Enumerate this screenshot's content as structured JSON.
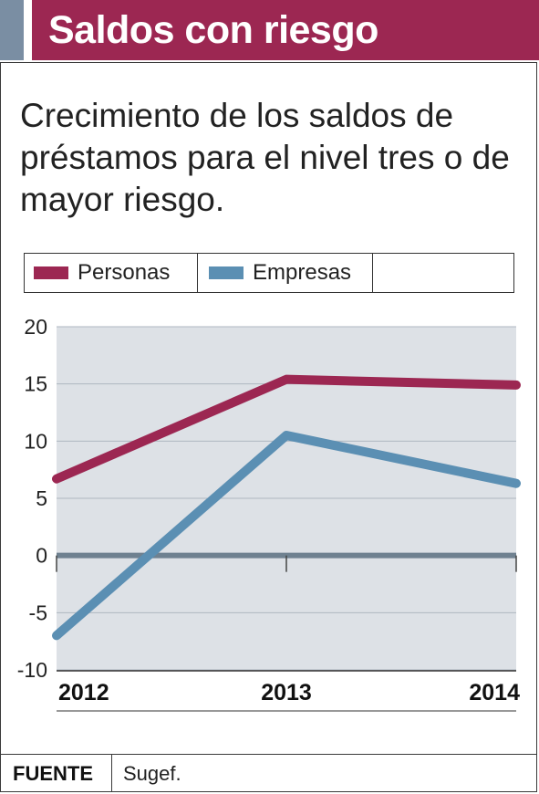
{
  "header": {
    "title": "Saldos con riesgo"
  },
  "subtitle": "Crecimiento de los saldos de préstamos para el nivel tres o de mayor riesgo.",
  "colors": {
    "accent": "#9c2752",
    "header_accent": "#7a8ea3",
    "plot_bg": "#dde1e6",
    "zero_line": "#6f8190"
  },
  "footer": {
    "label": "FUENTE",
    "source": "Sugef."
  },
  "chart_data": {
    "type": "line",
    "title": "",
    "xlabel": "",
    "ylabel": "",
    "categories": [
      "2012",
      "2013",
      "2014"
    ],
    "ylim": [
      -10,
      20
    ],
    "yticks": [
      "20",
      "15",
      "10",
      "5",
      "0",
      "-5",
      "-10"
    ],
    "grid": true,
    "legend": "top",
    "series": [
      {
        "name": "Personas",
        "color": "#9c2752",
        "values": [
          6.7,
          15.4,
          14.9
        ]
      },
      {
        "name": "Empresas",
        "color": "#5b8fb3",
        "values": [
          -7,
          10.5,
          6.3
        ]
      }
    ]
  }
}
